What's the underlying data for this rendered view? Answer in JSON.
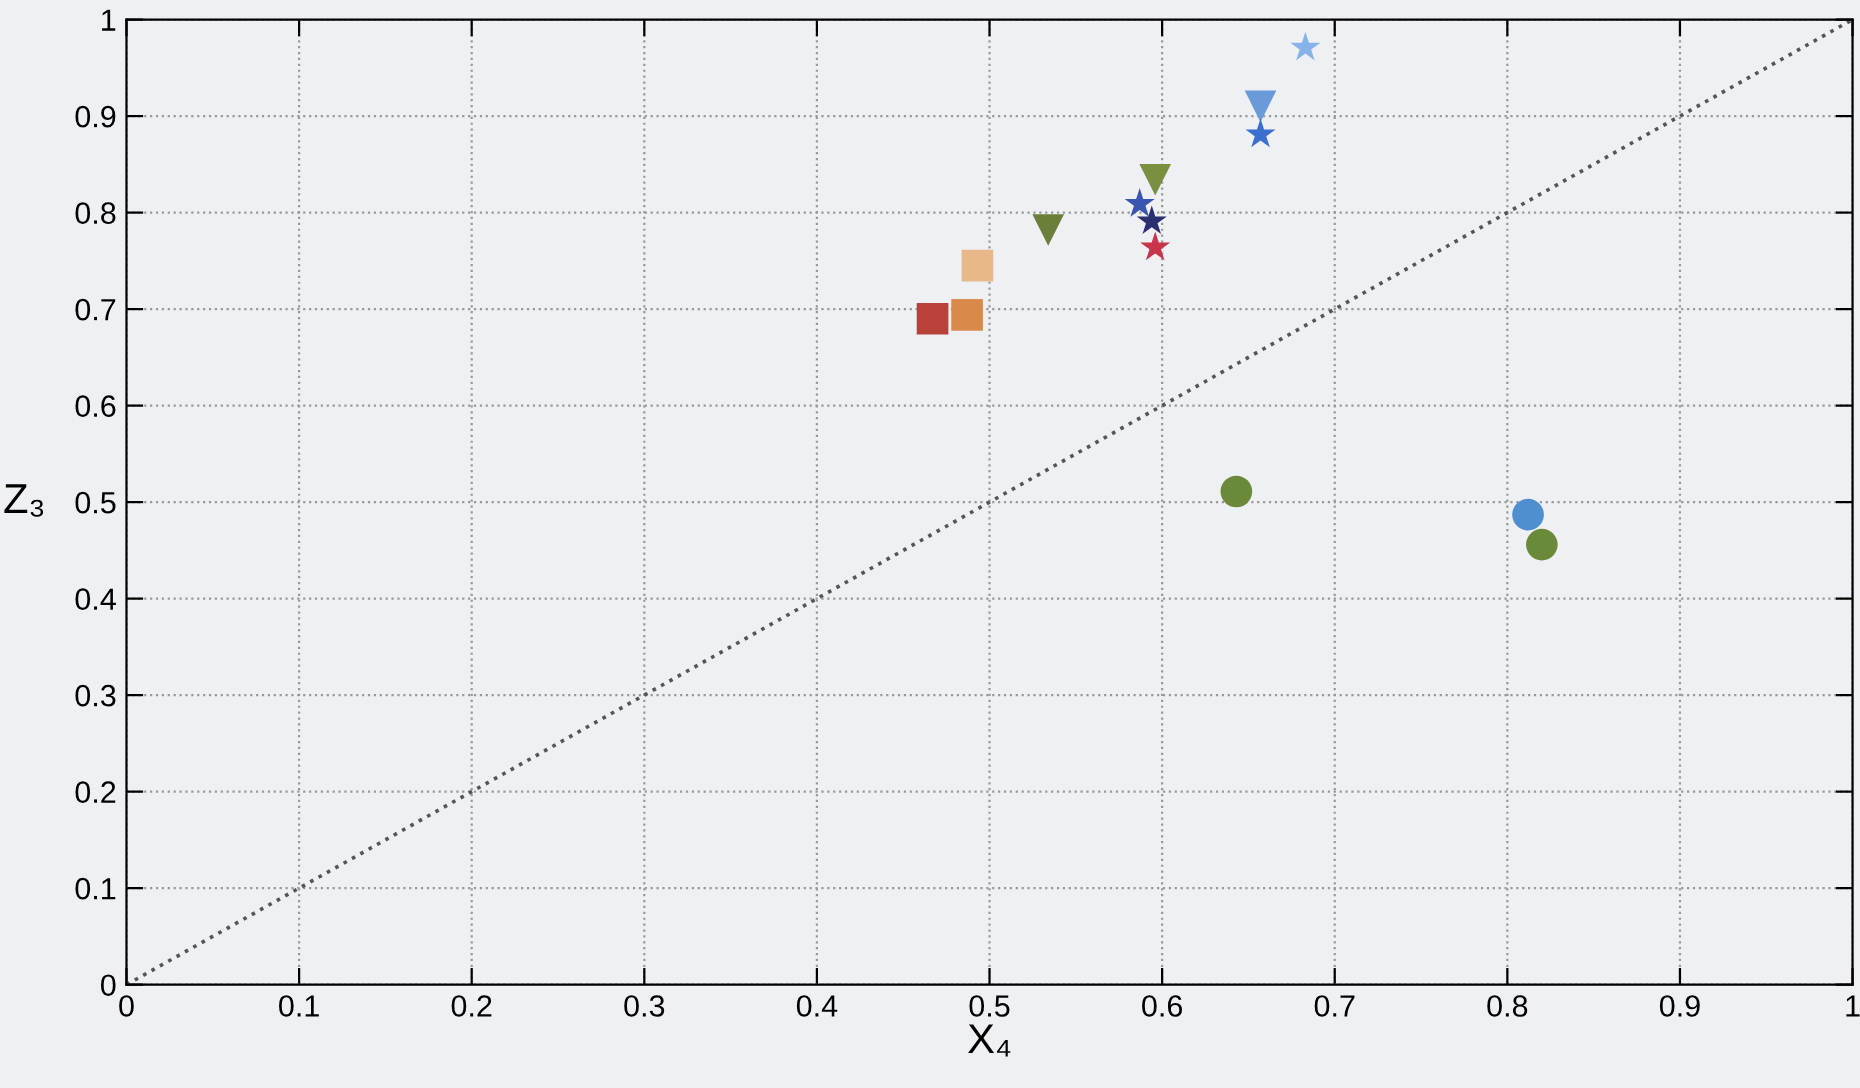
{
  "chart_data": {
    "type": "scatter",
    "xlabel": "X₄",
    "ylabel": "Z₃",
    "xlim": [
      0,
      1
    ],
    "ylim": [
      0,
      1
    ],
    "xticks": [
      0,
      0.1,
      0.2,
      0.3,
      0.4,
      0.5,
      0.6,
      0.7,
      0.8,
      0.9,
      1
    ],
    "yticks": [
      0,
      0.1,
      0.2,
      0.3,
      0.4,
      0.5,
      0.6,
      0.7,
      0.8,
      0.9,
      1
    ],
    "grid": true,
    "series": [
      {
        "type": "line",
        "x": [
          0,
          1
        ],
        "values": [
          0,
          1
        ],
        "color": "#555555",
        "line_style": "dotted",
        "marker": "none"
      },
      {
        "x": [
          0.467
        ],
        "values": [
          0.69
        ],
        "color": "#b8423a",
        "marker": "square"
      },
      {
        "x": [
          0.487
        ],
        "values": [
          0.694
        ],
        "color": "#d98a4a",
        "marker": "square"
      },
      {
        "x": [
          0.493
        ],
        "values": [
          0.745
        ],
        "color": "#e8b88a",
        "marker": "square"
      },
      {
        "x": [
          0.534
        ],
        "values": [
          0.782
        ],
        "color": "#6b7f3a",
        "marker": "triangle"
      },
      {
        "x": [
          0.596
        ],
        "values": [
          0.834
        ],
        "color": "#7a8f40",
        "marker": "triangle"
      },
      {
        "x": [
          0.657
        ],
        "values": [
          0.91
        ],
        "color": "#6a9ad8",
        "marker": "triangle"
      },
      {
        "x": [
          0.587
        ],
        "values": [
          0.809
        ],
        "color": "#3a55b0",
        "marker": "star"
      },
      {
        "x": [
          0.594
        ],
        "values": [
          0.791
        ],
        "color": "#2a2f70",
        "marker": "star"
      },
      {
        "x": [
          0.596
        ],
        "values": [
          0.764
        ],
        "color": "#c8344a",
        "marker": "star"
      },
      {
        "x": [
          0.657
        ],
        "values": [
          0.881
        ],
        "color": "#3a6fd0",
        "marker": "star"
      },
      {
        "x": [
          0.683
        ],
        "values": [
          0.971
        ],
        "color": "#86b4ea",
        "marker": "star"
      },
      {
        "x": [
          0.643
        ],
        "values": [
          0.511
        ],
        "color": "#6a8a3a",
        "marker": "circle"
      },
      {
        "x": [
          0.812
        ],
        "values": [
          0.487
        ],
        "color": "#4f8fd0",
        "marker": "circle"
      },
      {
        "x": [
          0.82
        ],
        "values": [
          0.456
        ],
        "color": "#6a8a3a",
        "marker": "circle"
      }
    ]
  }
}
